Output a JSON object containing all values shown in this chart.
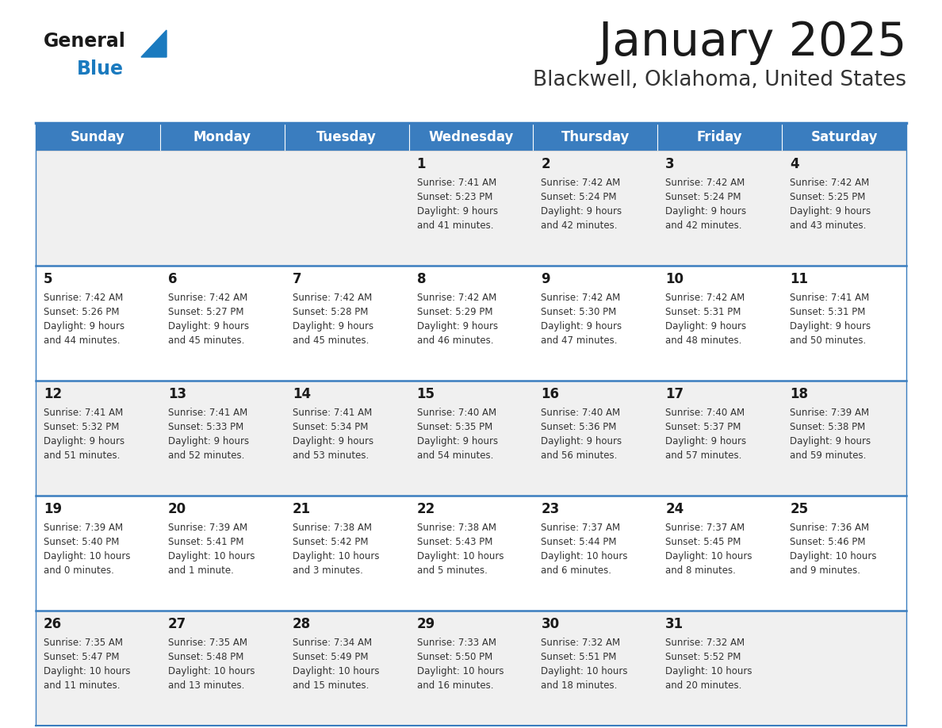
{
  "title": "January 2025",
  "subtitle": "Blackwell, Oklahoma, United States",
  "days_of_week": [
    "Sunday",
    "Monday",
    "Tuesday",
    "Wednesday",
    "Thursday",
    "Friday",
    "Saturday"
  ],
  "header_bg": "#3a7dbf",
  "header_text_color": "#ffffff",
  "row_bg_even": "#f0f0f0",
  "row_bg_odd": "#ffffff",
  "cell_text_color": "#333333",
  "day_num_color": "#1a1a1a",
  "border_color": "#3a7dbf",
  "title_color": "#1a1a1a",
  "subtitle_color": "#333333",
  "logo_black": "#1a1a1a",
  "logo_blue": "#1a7abf",
  "calendar": [
    [
      {
        "day": "",
        "sunrise": "",
        "sunset": "",
        "daylight": ""
      },
      {
        "day": "",
        "sunrise": "",
        "sunset": "",
        "daylight": ""
      },
      {
        "day": "",
        "sunrise": "",
        "sunset": "",
        "daylight": ""
      },
      {
        "day": "1",
        "sunrise": "7:41 AM",
        "sunset": "5:23 PM",
        "daylight": "9 hours and 41 minutes."
      },
      {
        "day": "2",
        "sunrise": "7:42 AM",
        "sunset": "5:24 PM",
        "daylight": "9 hours and 42 minutes."
      },
      {
        "day": "3",
        "sunrise": "7:42 AM",
        "sunset": "5:24 PM",
        "daylight": "9 hours and 42 minutes."
      },
      {
        "day": "4",
        "sunrise": "7:42 AM",
        "sunset": "5:25 PM",
        "daylight": "9 hours and 43 minutes."
      }
    ],
    [
      {
        "day": "5",
        "sunrise": "7:42 AM",
        "sunset": "5:26 PM",
        "daylight": "9 hours and 44 minutes."
      },
      {
        "day": "6",
        "sunrise": "7:42 AM",
        "sunset": "5:27 PM",
        "daylight": "9 hours and 45 minutes."
      },
      {
        "day": "7",
        "sunrise": "7:42 AM",
        "sunset": "5:28 PM",
        "daylight": "9 hours and 45 minutes."
      },
      {
        "day": "8",
        "sunrise": "7:42 AM",
        "sunset": "5:29 PM",
        "daylight": "9 hours and 46 minutes."
      },
      {
        "day": "9",
        "sunrise": "7:42 AM",
        "sunset": "5:30 PM",
        "daylight": "9 hours and 47 minutes."
      },
      {
        "day": "10",
        "sunrise": "7:42 AM",
        "sunset": "5:31 PM",
        "daylight": "9 hours and 48 minutes."
      },
      {
        "day": "11",
        "sunrise": "7:41 AM",
        "sunset": "5:31 PM",
        "daylight": "9 hours and 50 minutes."
      }
    ],
    [
      {
        "day": "12",
        "sunrise": "7:41 AM",
        "sunset": "5:32 PM",
        "daylight": "9 hours and 51 minutes."
      },
      {
        "day": "13",
        "sunrise": "7:41 AM",
        "sunset": "5:33 PM",
        "daylight": "9 hours and 52 minutes."
      },
      {
        "day": "14",
        "sunrise": "7:41 AM",
        "sunset": "5:34 PM",
        "daylight": "9 hours and 53 minutes."
      },
      {
        "day": "15",
        "sunrise": "7:40 AM",
        "sunset": "5:35 PM",
        "daylight": "9 hours and 54 minutes."
      },
      {
        "day": "16",
        "sunrise": "7:40 AM",
        "sunset": "5:36 PM",
        "daylight": "9 hours and 56 minutes."
      },
      {
        "day": "17",
        "sunrise": "7:40 AM",
        "sunset": "5:37 PM",
        "daylight": "9 hours and 57 minutes."
      },
      {
        "day": "18",
        "sunrise": "7:39 AM",
        "sunset": "5:38 PM",
        "daylight": "9 hours and 59 minutes."
      }
    ],
    [
      {
        "day": "19",
        "sunrise": "7:39 AM",
        "sunset": "5:40 PM",
        "daylight": "10 hours and 0 minutes."
      },
      {
        "day": "20",
        "sunrise": "7:39 AM",
        "sunset": "5:41 PM",
        "daylight": "10 hours and 1 minute."
      },
      {
        "day": "21",
        "sunrise": "7:38 AM",
        "sunset": "5:42 PM",
        "daylight": "10 hours and 3 minutes."
      },
      {
        "day": "22",
        "sunrise": "7:38 AM",
        "sunset": "5:43 PM",
        "daylight": "10 hours and 5 minutes."
      },
      {
        "day": "23",
        "sunrise": "7:37 AM",
        "sunset": "5:44 PM",
        "daylight": "10 hours and 6 minutes."
      },
      {
        "day": "24",
        "sunrise": "7:37 AM",
        "sunset": "5:45 PM",
        "daylight": "10 hours and 8 minutes."
      },
      {
        "day": "25",
        "sunrise": "7:36 AM",
        "sunset": "5:46 PM",
        "daylight": "10 hours and 9 minutes."
      }
    ],
    [
      {
        "day": "26",
        "sunrise": "7:35 AM",
        "sunset": "5:47 PM",
        "daylight": "10 hours and 11 minutes."
      },
      {
        "day": "27",
        "sunrise": "7:35 AM",
        "sunset": "5:48 PM",
        "daylight": "10 hours and 13 minutes."
      },
      {
        "day": "28",
        "sunrise": "7:34 AM",
        "sunset": "5:49 PM",
        "daylight": "10 hours and 15 minutes."
      },
      {
        "day": "29",
        "sunrise": "7:33 AM",
        "sunset": "5:50 PM",
        "daylight": "10 hours and 16 minutes."
      },
      {
        "day": "30",
        "sunrise": "7:32 AM",
        "sunset": "5:51 PM",
        "daylight": "10 hours and 18 minutes."
      },
      {
        "day": "31",
        "sunrise": "7:32 AM",
        "sunset": "5:52 PM",
        "daylight": "10 hours and 20 minutes."
      },
      {
        "day": "",
        "sunrise": "",
        "sunset": "",
        "daylight": ""
      }
    ]
  ]
}
